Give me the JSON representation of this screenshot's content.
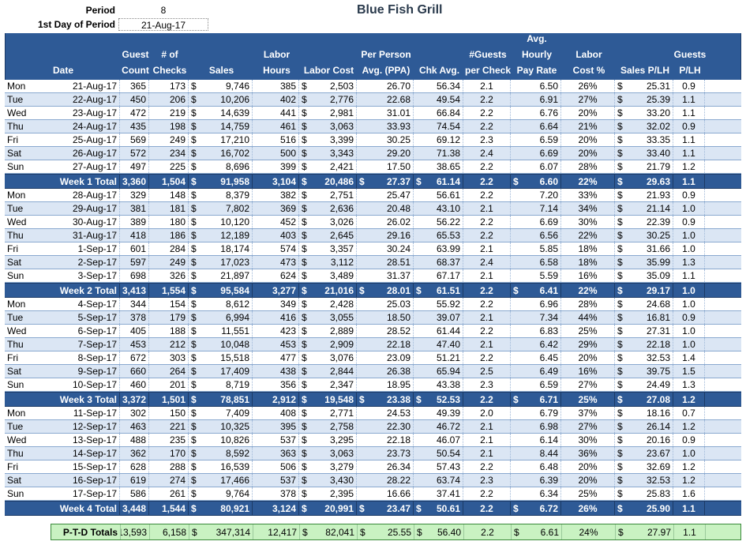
{
  "meta": {
    "period_label": "Period",
    "period_value": "8",
    "first_day_label": "1st Day of Period",
    "first_day_value": "21-Aug-17"
  },
  "title": "Blue Fish Grill",
  "headers": [
    [
      "",
      "Date"
    ],
    [
      "Guest",
      "Count"
    ],
    [
      "# of",
      "Checks"
    ],
    [
      "",
      "Sales"
    ],
    [
      "Labor",
      "Hours"
    ],
    [
      "",
      "Labor Cost"
    ],
    [
      "Per Person",
      "Avg. (PPA)"
    ],
    [
      "",
      "Chk Avg."
    ],
    [
      "#Guests",
      "per Check"
    ],
    [
      "Avg.",
      "Hourly",
      "Pay Rate"
    ],
    [
      "Labor",
      "Cost %"
    ],
    [
      "",
      "Sales P/LH"
    ],
    [
      "Guests",
      "P/LH"
    ]
  ],
  "currency_symbol": "$",
  "weeks": [
    {
      "days": [
        {
          "dow": "Mon",
          "date": "21-Aug-17",
          "guests": "365",
          "checks": "173",
          "sales": "9,746",
          "hours": "385",
          "labor_cost": "2,503",
          "ppa": "26.70",
          "chk_avg": "56.34",
          "gpc": "2.1",
          "pay_rate": "6.50",
          "labor_pct": "26%",
          "sales_plh": "25.31",
          "guests_plh": "0.9"
        },
        {
          "dow": "Tue",
          "date": "22-Aug-17",
          "guests": "450",
          "checks": "206",
          "sales": "10,206",
          "hours": "402",
          "labor_cost": "2,776",
          "ppa": "22.68",
          "chk_avg": "49.54",
          "gpc": "2.2",
          "pay_rate": "6.91",
          "labor_pct": "27%",
          "sales_plh": "25.39",
          "guests_plh": "1.1"
        },
        {
          "dow": "Wed",
          "date": "23-Aug-17",
          "guests": "472",
          "checks": "219",
          "sales": "14,639",
          "hours": "441",
          "labor_cost": "2,981",
          "ppa": "31.01",
          "chk_avg": "66.84",
          "gpc": "2.2",
          "pay_rate": "6.76",
          "labor_pct": "20%",
          "sales_plh": "33.20",
          "guests_plh": "1.1"
        },
        {
          "dow": "Thu",
          "date": "24-Aug-17",
          "guests": "435",
          "checks": "198",
          "sales": "14,759",
          "hours": "461",
          "labor_cost": "3,063",
          "ppa": "33.93",
          "chk_avg": "74.54",
          "gpc": "2.2",
          "pay_rate": "6.64",
          "labor_pct": "21%",
          "sales_plh": "32.02",
          "guests_plh": "0.9"
        },
        {
          "dow": "Fri",
          "date": "25-Aug-17",
          "guests": "569",
          "checks": "249",
          "sales": "17,210",
          "hours": "516",
          "labor_cost": "3,399",
          "ppa": "30.25",
          "chk_avg": "69.12",
          "gpc": "2.3",
          "pay_rate": "6.59",
          "labor_pct": "20%",
          "sales_plh": "33.35",
          "guests_plh": "1.1"
        },
        {
          "dow": "Sat",
          "date": "26-Aug-17",
          "guests": "572",
          "checks": "234",
          "sales": "16,702",
          "hours": "500",
          "labor_cost": "3,343",
          "ppa": "29.20",
          "chk_avg": "71.38",
          "gpc": "2.4",
          "pay_rate": "6.69",
          "labor_pct": "20%",
          "sales_plh": "33.40",
          "guests_plh": "1.1"
        },
        {
          "dow": "Sun",
          "date": "27-Aug-17",
          "guests": "497",
          "checks": "225",
          "sales": "8,696",
          "hours": "399",
          "labor_cost": "2,421",
          "ppa": "17.50",
          "chk_avg": "38.65",
          "gpc": "2.2",
          "pay_rate": "6.07",
          "labor_pct": "28%",
          "sales_plh": "21.79",
          "guests_plh": "1.2"
        }
      ],
      "total": {
        "label": "Week 1 Total",
        "guests": "3,360",
        "checks": "1,504",
        "sales": "91,958",
        "hours": "3,104",
        "labor_cost": "20,486",
        "ppa": "27.37",
        "chk_avg": "61.14",
        "gpc": "2.2",
        "pay_rate": "6.60",
        "labor_pct": "22%",
        "sales_plh": "29.63",
        "guests_plh": "1.1"
      }
    },
    {
      "days": [
        {
          "dow": "Mon",
          "date": "28-Aug-17",
          "guests": "329",
          "checks": "148",
          "sales": "8,379",
          "hours": "382",
          "labor_cost": "2,751",
          "ppa": "25.47",
          "chk_avg": "56.61",
          "gpc": "2.2",
          "pay_rate": "7.20",
          "labor_pct": "33%",
          "sales_plh": "21.93",
          "guests_plh": "0.9"
        },
        {
          "dow": "Tue",
          "date": "29-Aug-17",
          "guests": "381",
          "checks": "181",
          "sales": "7,802",
          "hours": "369",
          "labor_cost": "2,636",
          "ppa": "20.48",
          "chk_avg": "43.10",
          "gpc": "2.1",
          "pay_rate": "7.14",
          "labor_pct": "34%",
          "sales_plh": "21.14",
          "guests_plh": "1.0"
        },
        {
          "dow": "Wed",
          "date": "30-Aug-17",
          "guests": "389",
          "checks": "180",
          "sales": "10,120",
          "hours": "452",
          "labor_cost": "3,026",
          "ppa": "26.02",
          "chk_avg": "56.22",
          "gpc": "2.2",
          "pay_rate": "6.69",
          "labor_pct": "30%",
          "sales_plh": "22.39",
          "guests_plh": "0.9"
        },
        {
          "dow": "Thu",
          "date": "31-Aug-17",
          "guests": "418",
          "checks": "186",
          "sales": "12,189",
          "hours": "403",
          "labor_cost": "2,645",
          "ppa": "29.16",
          "chk_avg": "65.53",
          "gpc": "2.2",
          "pay_rate": "6.56",
          "labor_pct": "22%",
          "sales_plh": "30.25",
          "guests_plh": "1.0"
        },
        {
          "dow": "Fri",
          "date": "1-Sep-17",
          "guests": "601",
          "checks": "284",
          "sales": "18,174",
          "hours": "574",
          "labor_cost": "3,357",
          "ppa": "30.24",
          "chk_avg": "63.99",
          "gpc": "2.1",
          "pay_rate": "5.85",
          "labor_pct": "18%",
          "sales_plh": "31.66",
          "guests_plh": "1.0"
        },
        {
          "dow": "Sat",
          "date": "2-Sep-17",
          "guests": "597",
          "checks": "249",
          "sales": "17,023",
          "hours": "473",
          "labor_cost": "3,112",
          "ppa": "28.51",
          "chk_avg": "68.37",
          "gpc": "2.4",
          "pay_rate": "6.58",
          "labor_pct": "18%",
          "sales_plh": "35.99",
          "guests_plh": "1.3"
        },
        {
          "dow": "Sun",
          "date": "3-Sep-17",
          "guests": "698",
          "checks": "326",
          "sales": "21,897",
          "hours": "624",
          "labor_cost": "3,489",
          "ppa": "31.37",
          "chk_avg": "67.17",
          "gpc": "2.1",
          "pay_rate": "5.59",
          "labor_pct": "16%",
          "sales_plh": "35.09",
          "guests_plh": "1.1"
        }
      ],
      "total": {
        "label": "Week 2 Total",
        "guests": "3,413",
        "checks": "1,554",
        "sales": "95,584",
        "hours": "3,277",
        "labor_cost": "21,016",
        "ppa": "28.01",
        "chk_avg": "61.51",
        "gpc": "2.2",
        "pay_rate": "6.41",
        "labor_pct": "22%",
        "sales_plh": "29.17",
        "guests_plh": "1.0"
      }
    },
    {
      "days": [
        {
          "dow": "Mon",
          "date": "4-Sep-17",
          "guests": "344",
          "checks": "154",
          "sales": "8,612",
          "hours": "349",
          "labor_cost": "2,428",
          "ppa": "25.03",
          "chk_avg": "55.92",
          "gpc": "2.2",
          "pay_rate": "6.96",
          "labor_pct": "28%",
          "sales_plh": "24.68",
          "guests_plh": "1.0"
        },
        {
          "dow": "Tue",
          "date": "5-Sep-17",
          "guests": "378",
          "checks": "179",
          "sales": "6,994",
          "hours": "416",
          "labor_cost": "3,055",
          "ppa": "18.50",
          "chk_avg": "39.07",
          "gpc": "2.1",
          "pay_rate": "7.34",
          "labor_pct": "44%",
          "sales_plh": "16.81",
          "guests_plh": "0.9"
        },
        {
          "dow": "Wed",
          "date": "6-Sep-17",
          "guests": "405",
          "checks": "188",
          "sales": "11,551",
          "hours": "423",
          "labor_cost": "2,889",
          "ppa": "28.52",
          "chk_avg": "61.44",
          "gpc": "2.2",
          "pay_rate": "6.83",
          "labor_pct": "25%",
          "sales_plh": "27.31",
          "guests_plh": "1.0"
        },
        {
          "dow": "Thu",
          "date": "7-Sep-17",
          "guests": "453",
          "checks": "212",
          "sales": "10,048",
          "hours": "453",
          "labor_cost": "2,909",
          "ppa": "22.18",
          "chk_avg": "47.40",
          "gpc": "2.1",
          "pay_rate": "6.42",
          "labor_pct": "29%",
          "sales_plh": "22.18",
          "guests_plh": "1.0"
        },
        {
          "dow": "Fri",
          "date": "8-Sep-17",
          "guests": "672",
          "checks": "303",
          "sales": "15,518",
          "hours": "477",
          "labor_cost": "3,076",
          "ppa": "23.09",
          "chk_avg": "51.21",
          "gpc": "2.2",
          "pay_rate": "6.45",
          "labor_pct": "20%",
          "sales_plh": "32.53",
          "guests_plh": "1.4"
        },
        {
          "dow": "Sat",
          "date": "9-Sep-17",
          "guests": "660",
          "checks": "264",
          "sales": "17,409",
          "hours": "438",
          "labor_cost": "2,844",
          "ppa": "26.38",
          "chk_avg": "65.94",
          "gpc": "2.5",
          "pay_rate": "6.49",
          "labor_pct": "16%",
          "sales_plh": "39.75",
          "guests_plh": "1.5"
        },
        {
          "dow": "Sun",
          "date": "10-Sep-17",
          "guests": "460",
          "checks": "201",
          "sales": "8,719",
          "hours": "356",
          "labor_cost": "2,347",
          "ppa": "18.95",
          "chk_avg": "43.38",
          "gpc": "2.3",
          "pay_rate": "6.59",
          "labor_pct": "27%",
          "sales_plh": "24.49",
          "guests_plh": "1.3"
        }
      ],
      "total": {
        "label": "Week 3 Total",
        "guests": "3,372",
        "checks": "1,501",
        "sales": "78,851",
        "hours": "2,912",
        "labor_cost": "19,548",
        "ppa": "23.38",
        "chk_avg": "52.53",
        "gpc": "2.2",
        "pay_rate": "6.71",
        "labor_pct": "25%",
        "sales_plh": "27.08",
        "guests_plh": "1.2"
      }
    },
    {
      "days": [
        {
          "dow": "Mon",
          "date": "11-Sep-17",
          "guests": "302",
          "checks": "150",
          "sales": "7,409",
          "hours": "408",
          "labor_cost": "2,771",
          "ppa": "24.53",
          "chk_avg": "49.39",
          "gpc": "2.0",
          "pay_rate": "6.79",
          "labor_pct": "37%",
          "sales_plh": "18.16",
          "guests_plh": "0.7"
        },
        {
          "dow": "Tue",
          "date": "12-Sep-17",
          "guests": "463",
          "checks": "221",
          "sales": "10,325",
          "hours": "395",
          "labor_cost": "2,758",
          "ppa": "22.30",
          "chk_avg": "46.72",
          "gpc": "2.1",
          "pay_rate": "6.98",
          "labor_pct": "27%",
          "sales_plh": "26.14",
          "guests_plh": "1.2"
        },
        {
          "dow": "Wed",
          "date": "13-Sep-17",
          "guests": "488",
          "checks": "235",
          "sales": "10,826",
          "hours": "537",
          "labor_cost": "3,295",
          "ppa": "22.18",
          "chk_avg": "46.07",
          "gpc": "2.1",
          "pay_rate": "6.14",
          "labor_pct": "30%",
          "sales_plh": "20.16",
          "guests_plh": "0.9"
        },
        {
          "dow": "Thu",
          "date": "14-Sep-17",
          "guests": "362",
          "checks": "170",
          "sales": "8,592",
          "hours": "363",
          "labor_cost": "3,063",
          "ppa": "23.73",
          "chk_avg": "50.54",
          "gpc": "2.1",
          "pay_rate": "8.44",
          "labor_pct": "36%",
          "sales_plh": "23.67",
          "guests_plh": "1.0"
        },
        {
          "dow": "Fri",
          "date": "15-Sep-17",
          "guests": "628",
          "checks": "288",
          "sales": "16,539",
          "hours": "506",
          "labor_cost": "3,279",
          "ppa": "26.34",
          "chk_avg": "57.43",
          "gpc": "2.2",
          "pay_rate": "6.48",
          "labor_pct": "20%",
          "sales_plh": "32.69",
          "guests_plh": "1.2"
        },
        {
          "dow": "Sat",
          "date": "16-Sep-17",
          "guests": "619",
          "checks": "274",
          "sales": "17,466",
          "hours": "537",
          "labor_cost": "3,430",
          "ppa": "28.22",
          "chk_avg": "63.74",
          "gpc": "2.3",
          "pay_rate": "6.39",
          "labor_pct": "20%",
          "sales_plh": "32.53",
          "guests_plh": "1.2"
        },
        {
          "dow": "Sun",
          "date": "17-Sep-17",
          "guests": "586",
          "checks": "261",
          "sales": "9,764",
          "hours": "378",
          "labor_cost": "2,395",
          "ppa": "16.66",
          "chk_avg": "37.41",
          "gpc": "2.2",
          "pay_rate": "6.34",
          "labor_pct": "25%",
          "sales_plh": "25.83",
          "guests_plh": "1.6"
        }
      ],
      "total": {
        "label": "Week 4 Total",
        "guests": "3,448",
        "checks": "1,544",
        "sales": "80,921",
        "hours": "3,124",
        "labor_cost": "20,991",
        "ppa": "23.47",
        "chk_avg": "50.61",
        "gpc": "2.2",
        "pay_rate": "6.72",
        "labor_pct": "26%",
        "sales_plh": "25.90",
        "guests_plh": "1.1"
      }
    }
  ],
  "ptd": {
    "label": "P-T-D Totals",
    "guests": "13,593",
    "checks": "6,158",
    "sales": "347,314",
    "hours": "12,417",
    "labor_cost": "82,041",
    "ppa": "25.55",
    "chk_avg": "56.40",
    "gpc": "2.2",
    "pay_rate": "6.61",
    "labor_pct": "24%",
    "sales_plh": "27.97",
    "guests_plh": "1.1"
  }
}
